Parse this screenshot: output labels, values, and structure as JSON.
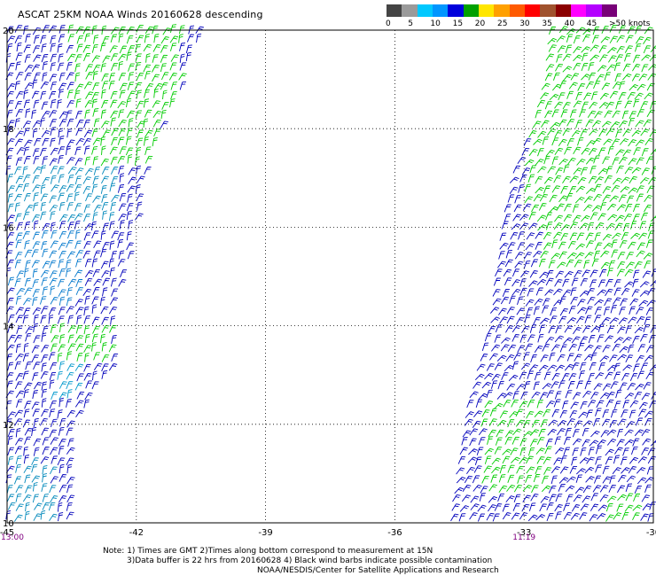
{
  "title": "ASCAT 25KM NOAA Winds 20160628 descending",
  "legend": {
    "tick_labels": [
      "0",
      "5",
      "10",
      "15",
      "20",
      "25",
      "30",
      "35",
      "40",
      "45",
      ">50 knots"
    ],
    "colors": [
      "#444444",
      "#9a9a9a",
      "#00c8ff",
      "#0096ff",
      "#0000dc",
      "#00a000",
      "#ffe600",
      "#ffa000",
      "#ff5a00",
      "#ff0000",
      "#a0522d",
      "#8b0000",
      "#ff00ff",
      "#b400ff",
      "#780078"
    ]
  },
  "chart_data": {
    "type": "scatter",
    "title": "ASCAT 25KM NOAA Winds 20160628 descending",
    "xlabel": "",
    "ylabel": "",
    "xlim": [
      -45,
      -30
    ],
    "ylim": [
      10,
      20
    ],
    "x_ticks": [
      -45,
      -42,
      -39,
      -36,
      -33,
      -30
    ],
    "y_ticks": [
      10,
      12,
      14,
      16,
      18,
      20
    ],
    "x_tick_labels": [
      "-45",
      "-42",
      "-39",
      "-36",
      "-33",
      "-30"
    ],
    "y_tick_labels": [
      "10",
      "12",
      "14",
      "16",
      "18",
      "20"
    ],
    "grid": true,
    "time_labels": [
      {
        "lon": -45,
        "text": "13:00"
      },
      {
        "lon": -33,
        "text": "11:19"
      }
    ],
    "swaths": [
      {
        "name": "west",
        "color_regions": [
          {
            "lat": [
              18.2,
              20
            ],
            "lon": [
              -43.6,
              -41.0
            ],
            "color": "#00cc00"
          },
          {
            "lat": [
              17.2,
              18.2
            ],
            "lon": [
              -43.2,
              -41.5
            ],
            "color": "#00cc00"
          },
          {
            "lat": [
              13.2,
              14.0
            ],
            "lon": [
              -44.0,
              -42.6
            ],
            "color": "#00cc00"
          },
          {
            "lat": [
              12.5,
              13.2
            ],
            "lon": [
              -44.0,
              -43.4
            ],
            "color": "#0099cc"
          },
          {
            "lat": [
              16.0,
              17.2
            ],
            "lon": [
              -45.0,
              -42.5
            ],
            "color": "#0088bb"
          },
          {
            "lat": [
              14.4,
              15.8
            ],
            "lon": [
              -45.0,
              -43.3
            ],
            "color": "#0077cc"
          },
          {
            "lat": [
              10.0,
              11.2
            ],
            "lon": [
              -45.0,
              -44.0
            ],
            "color": "#0088bb"
          }
        ],
        "base_color": "#0000bb",
        "wind_speed_kt": [
          15,
          25
        ],
        "wind_dir_deg": 70
      },
      {
        "name": "east",
        "color_regions": [
          {
            "lat": [
              15.0,
              20
            ],
            "lon": [
              -32.7,
              -30
            ],
            "color": "#00cc00"
          },
          {
            "lat": [
              16.0,
              19.2
            ],
            "lon": [
              -33.0,
              -32.7
            ],
            "color": "#00cc00"
          },
          {
            "lat": [
              18.5,
              20
            ],
            "lon": [
              -31.5,
              -30.5
            ],
            "color": "#009900"
          },
          {
            "lat": [
              10.5,
              12.4
            ],
            "lon": [
              -34.0,
              -32.5
            ],
            "color": "#00cc00"
          },
          {
            "lat": [
              10.0,
              10.5
            ],
            "lon": [
              -31.2,
              -30.3
            ],
            "color": "#00cc00"
          },
          {
            "lat": [
              16.0,
              17.0
            ],
            "lon": [
              -33.3,
              -32.5
            ],
            "color": "#0000bb"
          }
        ],
        "base_color": "#0000bb",
        "wind_speed_kt": [
          15,
          25
        ],
        "wind_dir_deg": 60
      }
    ]
  },
  "notes": [
    "Note: 1) Times are GMT 2)Times along bottom correspond to measurement at 15N",
    "3)Data buffer is 22 hrs from 20160628 4) Black wind barbs indicate possible contamination",
    "NOAA/NESDIS/Center for Satellite Applications and Research"
  ]
}
